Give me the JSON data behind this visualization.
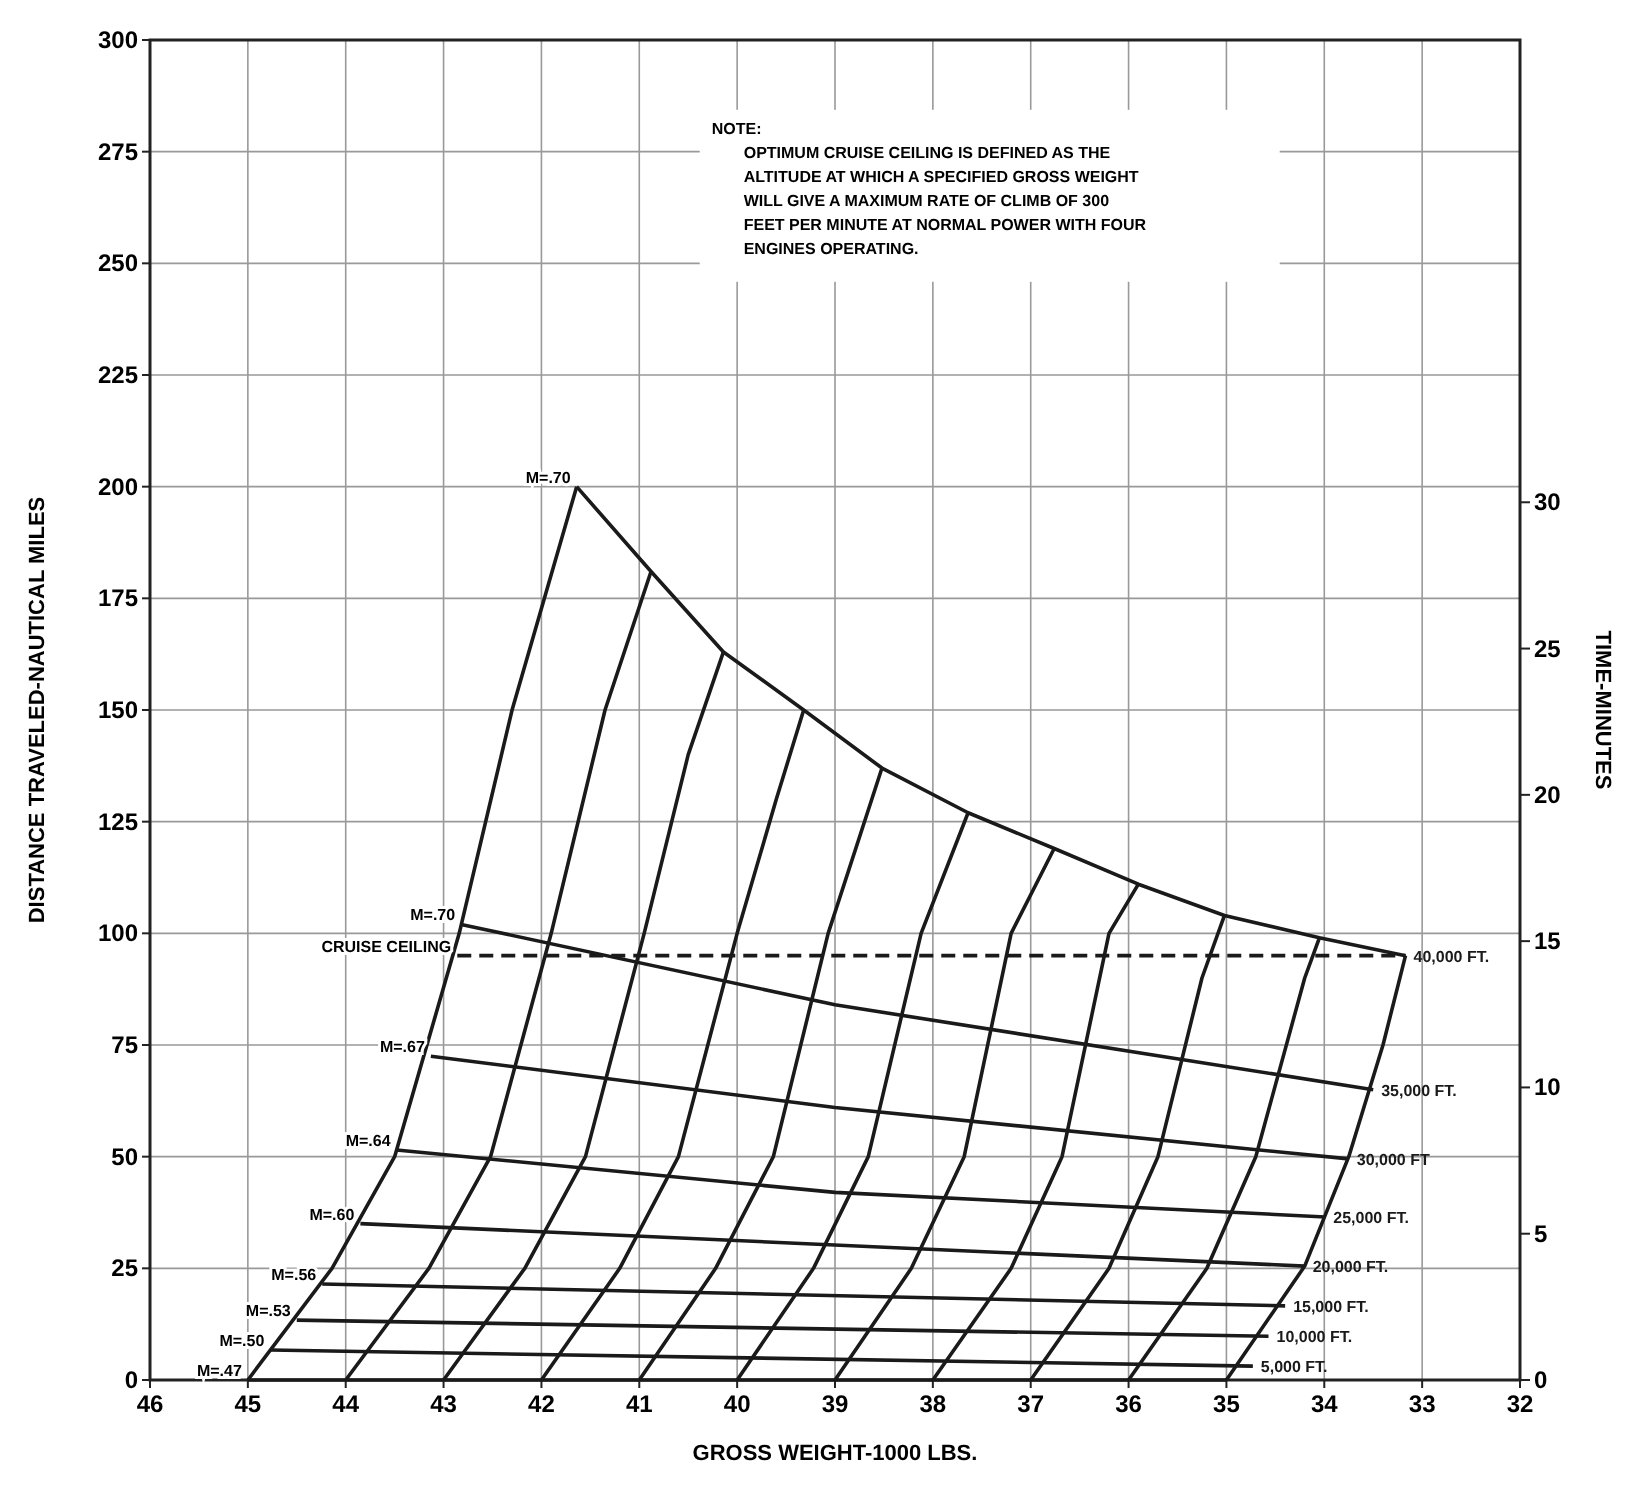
{
  "chart_data": {
    "type": "line",
    "xlabel": "GROSS WEIGHT-1000 LBS.",
    "ylabel": "DISTANCE TRAVELED-NAUTICAL MILES",
    "y2label": "TIME-MINUTES",
    "xlim": [
      46,
      32
    ],
    "xticks": [
      46,
      45,
      44,
      43,
      42,
      41,
      40,
      39,
      38,
      37,
      36,
      35,
      34,
      33,
      32
    ],
    "ylim": [
      0,
      300
    ],
    "yticks": [
      0,
      25,
      50,
      75,
      100,
      125,
      150,
      175,
      200,
      225,
      250,
      275,
      300
    ],
    "y2lim": [
      0,
      45.8
    ],
    "y2ticks": [
      0,
      5,
      10,
      15,
      20,
      25,
      30
    ],
    "grid": true,
    "marker": "none",
    "series": [
      {
        "color": "#1a1a1a",
        "x": [
          45,
          35
        ],
        "values": [
          0,
          0
        ]
      },
      {
        "name": "5,000 FT.",
        "color": "#1a1a1a",
        "x": [
          44.77,
          34.73
        ],
        "values": [
          6.7,
          3.1
        ]
      },
      {
        "name": "10,000 FT.",
        "color": "#1a1a1a",
        "x": [
          44.5,
          34.57
        ],
        "values": [
          13.4,
          9.8
        ]
      },
      {
        "name": "15,000 FT.",
        "color": "#1a1a1a",
        "x": [
          44.24,
          34.4
        ],
        "values": [
          21.5,
          16.6
        ]
      },
      {
        "name": "20,000 FT.",
        "color": "#1a1a1a",
        "x": [
          43.85,
          34.2
        ],
        "values": [
          35,
          25.5
        ]
      },
      {
        "name": "25,000 FT.",
        "color": "#1a1a1a",
        "x": [
          43.48,
          39,
          33.99
        ],
        "values": [
          51.5,
          42,
          36.5
        ]
      },
      {
        "name": "30,000 FT",
        "color": "#1a1a1a",
        "x": [
          43.13,
          39,
          33.75
        ],
        "values": [
          72.5,
          61,
          49.5
        ]
      },
      {
        "name": "35,000 FT.",
        "color": "#1a1a1a",
        "x": [
          42.82,
          39,
          33.5
        ],
        "values": [
          102,
          84,
          65
        ]
      },
      {
        "name": "40,000 FT.",
        "color": "#1a1a1a",
        "x": [
          41.64,
          40.88,
          40.14,
          39.32,
          38.52,
          37.64,
          36.76,
          35.9,
          35.02,
          34.05,
          33.17
        ],
        "values": [
          200,
          181,
          163,
          150,
          137,
          127,
          119,
          111,
          104,
          99,
          95
        ]
      },
      {
        "color": "#1a1a1a",
        "line_style": "dashed",
        "x": [
          42.86,
          33.17
        ],
        "values": [
          95,
          95
        ]
      },
      {
        "color": "#1a1a1a",
        "x": [
          45,
          44.14,
          43.5,
          42.84,
          42.3,
          41.64
        ],
        "values": [
          0,
          25,
          50,
          100,
          150,
          200
        ]
      },
      {
        "color": "#1a1a1a",
        "x": [
          44,
          43.15,
          42.52,
          41.9,
          41.35,
          40.88
        ],
        "values": [
          0,
          25,
          50,
          100,
          150,
          181
        ]
      },
      {
        "color": "#1a1a1a",
        "x": [
          43,
          42.17,
          41.55,
          40.95,
          40.5,
          40.14
        ],
        "values": [
          0,
          25,
          50,
          100,
          140,
          163
        ]
      },
      {
        "color": "#1a1a1a",
        "x": [
          42,
          41.2,
          40.6,
          40.0,
          39.6,
          39.32
        ],
        "values": [
          0,
          25,
          50,
          100,
          130,
          150
        ]
      },
      {
        "color": "#1a1a1a",
        "x": [
          41,
          40.22,
          39.63,
          39.07,
          38.52
        ],
        "values": [
          0,
          25,
          50,
          100,
          137
        ]
      },
      {
        "color": "#1a1a1a",
        "x": [
          40,
          39.22,
          38.66,
          38.12,
          37.64
        ],
        "values": [
          0,
          25,
          50,
          100,
          127
        ]
      },
      {
        "color": "#1a1a1a",
        "x": [
          39,
          38.22,
          37.68,
          37.2,
          36.76
        ],
        "values": [
          0,
          25,
          50,
          100,
          119
        ]
      },
      {
        "color": "#1a1a1a",
        "x": [
          38,
          37.2,
          36.68,
          36.2,
          35.9
        ],
        "values": [
          0,
          25,
          50,
          100,
          111
        ]
      },
      {
        "color": "#1a1a1a",
        "x": [
          37,
          36.2,
          35.7,
          35.25,
          35.02
        ],
        "values": [
          0,
          25,
          50,
          90,
          104
        ]
      },
      {
        "color": "#1a1a1a",
        "x": [
          36,
          35.2,
          34.7,
          34.2,
          34.05
        ],
        "values": [
          0,
          25,
          50,
          90,
          99
        ]
      },
      {
        "color": "#1a1a1a",
        "x": [
          35,
          34.2,
          33.75,
          33.4,
          33.17
        ],
        "values": [
          0,
          25.5,
          50,
          75,
          95
        ]
      }
    ],
    "annotations": [
      {
        "text": "M=.47",
        "x": 45,
        "y": 0
      },
      {
        "text": "M=.50",
        "x": 44.77,
        "y": 6.7
      },
      {
        "text": "M=.53",
        "x": 44.5,
        "y": 13.4
      },
      {
        "text": "M=.56",
        "x": 44.24,
        "y": 21.5
      },
      {
        "text": "M=.60",
        "x": 43.85,
        "y": 35
      },
      {
        "text": "M=.64",
        "x": 43.48,
        "y": 51.5
      },
      {
        "text": "M=.67",
        "x": 43.13,
        "y": 72.5
      },
      {
        "text": "M=.70",
        "x": 42.82,
        "y": 102
      },
      {
        "text": "CRUISE CEILING",
        "x": 42.86,
        "y": 95
      },
      {
        "text": "M=.70",
        "x": 41.64,
        "y": 200
      },
      "NOTE:",
      "OPTIMUM CRUISE CEILING IS DEFINED AS THE ALTITUDE AT WHICH A SPECIFIED GROSS WEIGHT WILL GIVE A MAXIMUM RATE OF CLIMB OF 300 FEET PER MINUTE AT NORMAL POWER WITH FOUR ENGINES OPERATING."
    ]
  }
}
